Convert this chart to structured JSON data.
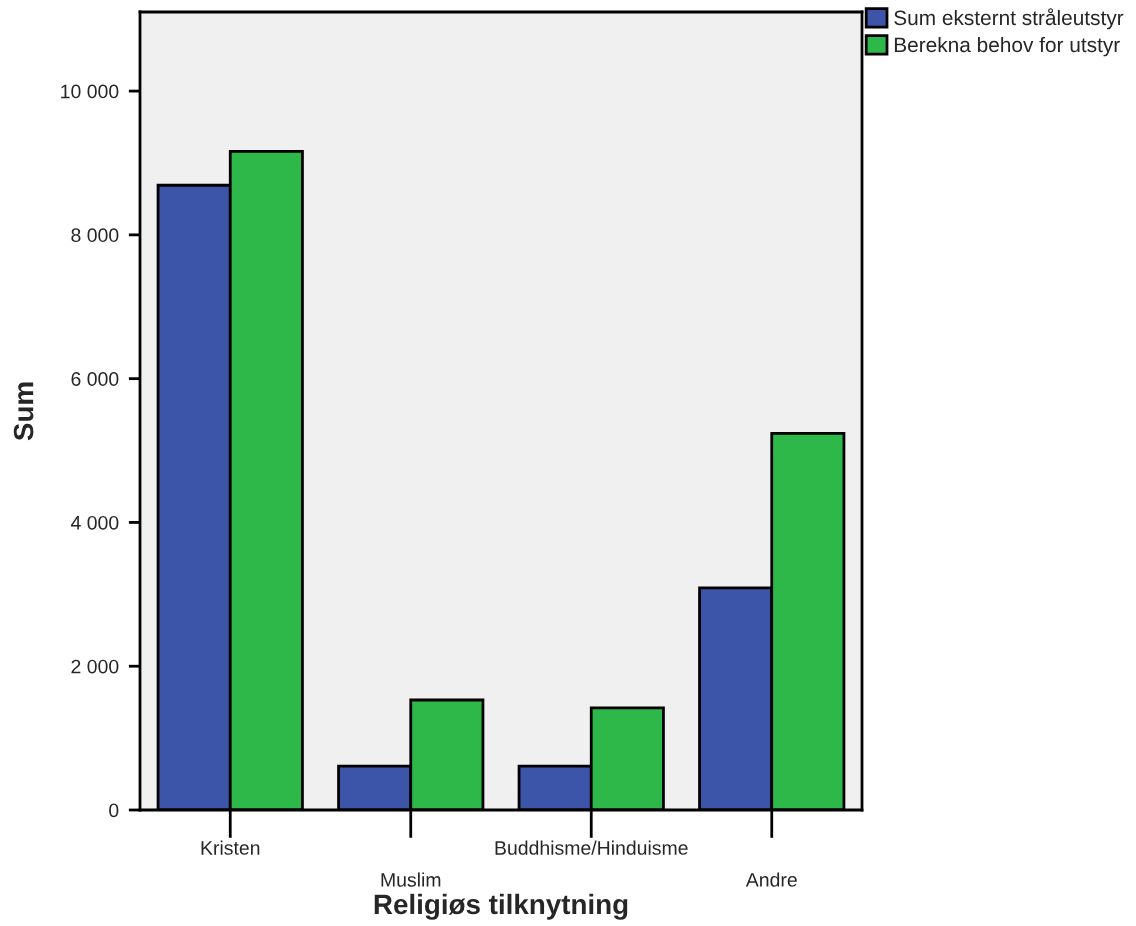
{
  "chart_data": {
    "type": "bar",
    "xlabel": "Religiøs tilknytning",
    "ylabel": "Sum",
    "categories": [
      "Kristen",
      "Muslim",
      "Buddhisme/Hinduisme",
      "Andre"
    ],
    "series": [
      {
        "name": "Sum eksternt stråleutstyr",
        "color": "#3d55a8",
        "values": [
          8690,
          610,
          610,
          3090
        ]
      },
      {
        "name": "Berekna behov for utstyr",
        "color": "#2fb84a",
        "values": [
          9160,
          1530,
          1420,
          5240
        ]
      }
    ],
    "ylim": [
      0,
      11100
    ],
    "yticks": [
      0,
      {
        "value": 2000,
        "label": "2 000"
      },
      {
        "value": 4000,
        "label": "4 000"
      },
      {
        "value": 6000,
        "label": "6 000"
      },
      {
        "value": 8000,
        "label": "8 000"
      },
      {
        "value": 10000,
        "label": "10 000"
      }
    ],
    "grid": false,
    "legend": "top right"
  }
}
